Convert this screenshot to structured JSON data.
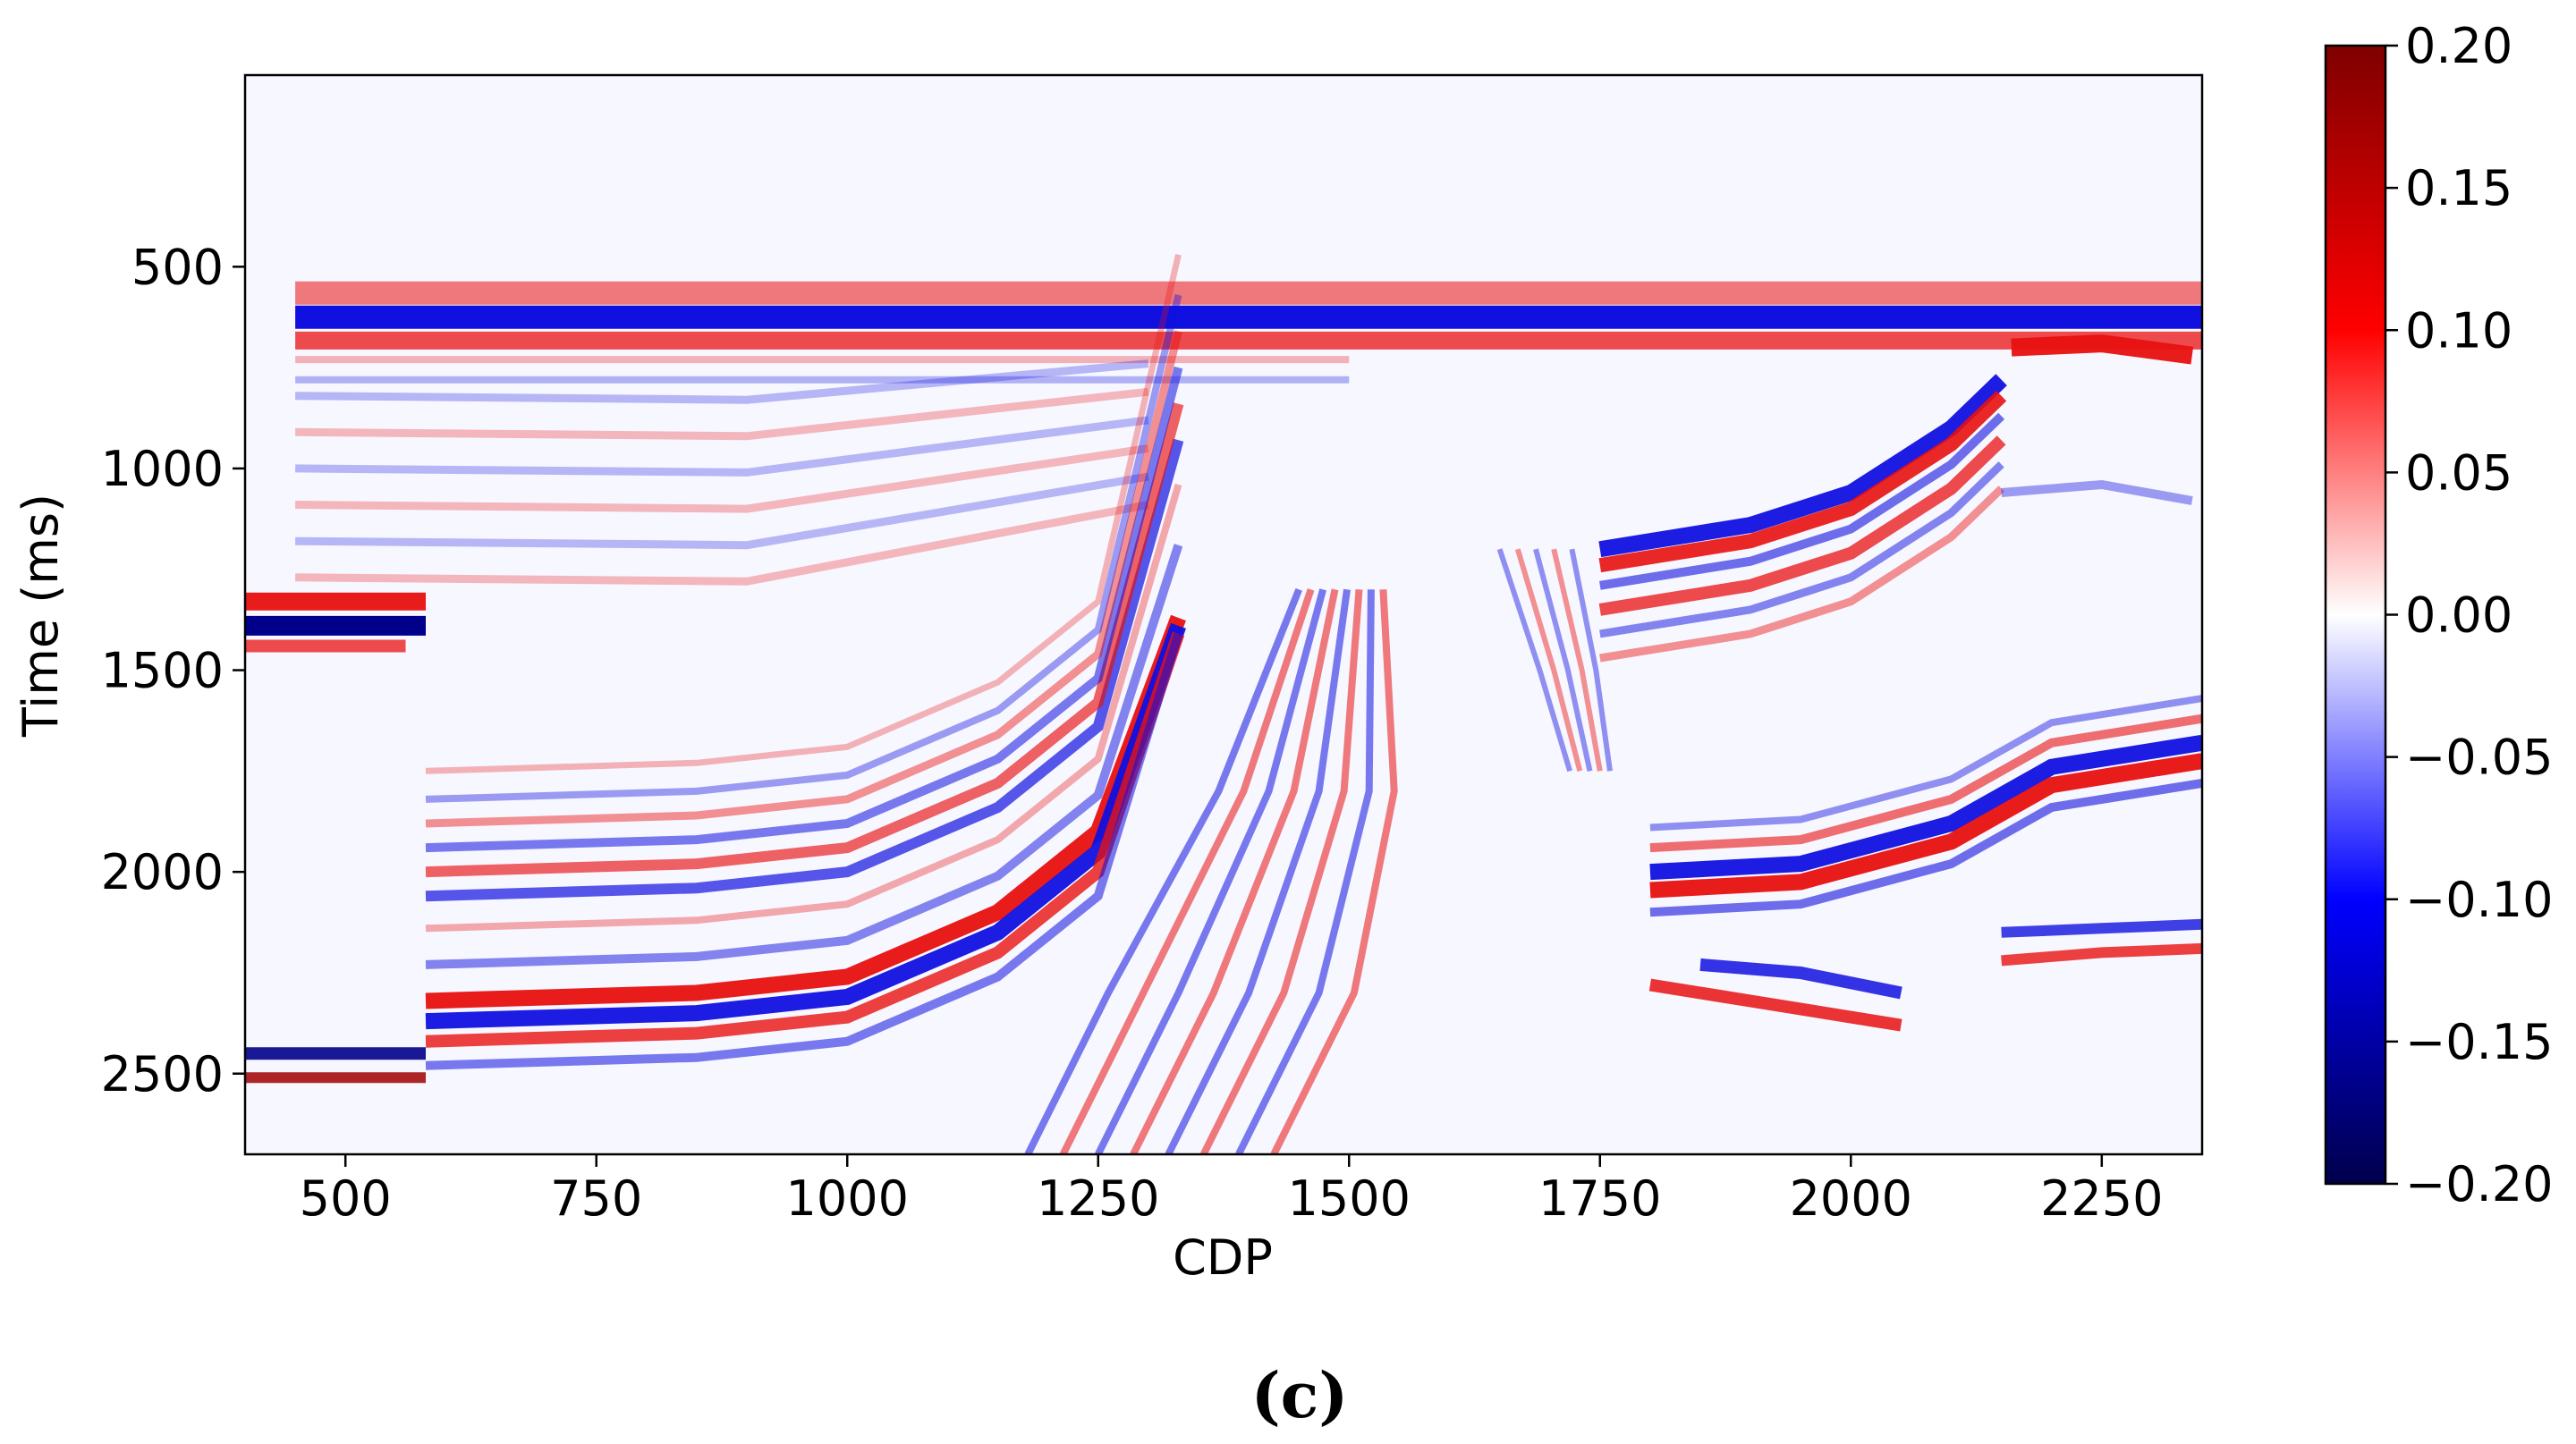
{
  "chart_data": {
    "type": "heatmap",
    "title": "",
    "xlabel": "CDP",
    "ylabel": "Time (ms)",
    "xlim": [
      400,
      2350
    ],
    "ylim": [
      2700,
      25
    ],
    "y_inverted": true,
    "xticks": [
      500,
      750,
      1000,
      1250,
      1500,
      1750,
      2000,
      2250
    ],
    "yticks": [
      500,
      1000,
      1500,
      2000,
      2500
    ],
    "colormap": "seismic",
    "colormap_stops": [
      "#00004c",
      "#0000ff",
      "#ffffff",
      "#ff0000",
      "#7f0000"
    ],
    "colorbar": {
      "range": [
        -0.2,
        0.2
      ],
      "ticks": [
        "0.20",
        "0.15",
        "0.10",
        "0.05",
        "0.00",
        "−0.05",
        "−0.10",
        "−0.15",
        "−0.20"
      ],
      "position": "right"
    },
    "dominant_reflectors": [
      {
        "description": "flat strong reflector band",
        "cdp_range": [
          450,
          2350
        ],
        "time_ms": [
          560,
          640,
          690
        ],
        "polarity": [
          "+",
          "-",
          "+"
        ],
        "amplitude": 0.12
      },
      {
        "description": "dipping reflectors left flank",
        "cdp_range": [
          550,
          1350
        ],
        "time_ms_at_start": 2300,
        "time_ms_at_end": 1100,
        "amplitude": 0.15
      },
      {
        "description": "dipping reflectors right flank",
        "cdp_range": [
          1750,
          2100
        ],
        "time_ms_at_start": 1200,
        "time_ms_at_end": 800,
        "amplitude": 0.12
      },
      {
        "description": "right deep reflectors",
        "cdp_range": [
          1800,
          2350
        ],
        "time_ms_at_start": 2000,
        "time_ms_at_end": 1650,
        "amplitude": 0.15
      },
      {
        "description": "left shallow patch",
        "cdp_range": [
          400,
          580
        ],
        "time_ms": [
          1320,
          1400
        ],
        "amplitude": 0.16
      }
    ]
  },
  "caption": "(c)"
}
